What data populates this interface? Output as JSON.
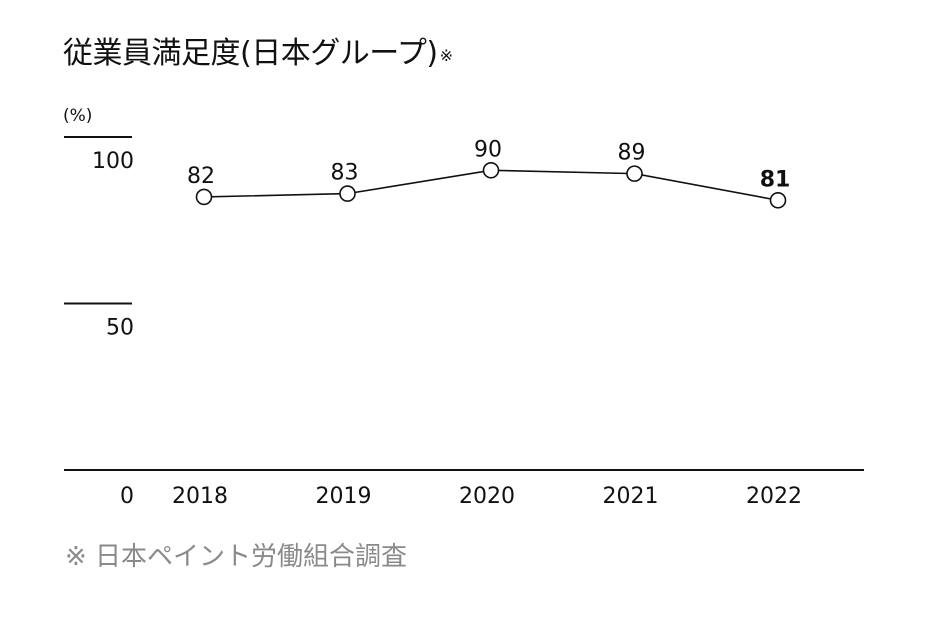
{
  "title": "従業員満足度(日本グループ)",
  "title_mark": "※",
  "footnote": "※ 日本ペイント労働組合調査",
  "chart_data": {
    "type": "line",
    "title": "従業員満足度(日本グループ)",
    "ylabel": "(%)",
    "xlabel": "",
    "categories": [
      "2018",
      "2019",
      "2020",
      "2021",
      "2022"
    ],
    "values": [
      82,
      83,
      90,
      89,
      81
    ],
    "value_labels": [
      "82",
      "83",
      "90",
      "89",
      "81"
    ],
    "highlight_index": 4,
    "ylim": [
      0,
      100
    ],
    "yticks": [
      0,
      50,
      100
    ],
    "ytick_labels": [
      "0",
      "50",
      "100"
    ],
    "grid": false,
    "colors": {
      "line": "#111111",
      "marker_fill": "#ffffff",
      "text": "#111111",
      "axis": "#111111"
    }
  }
}
